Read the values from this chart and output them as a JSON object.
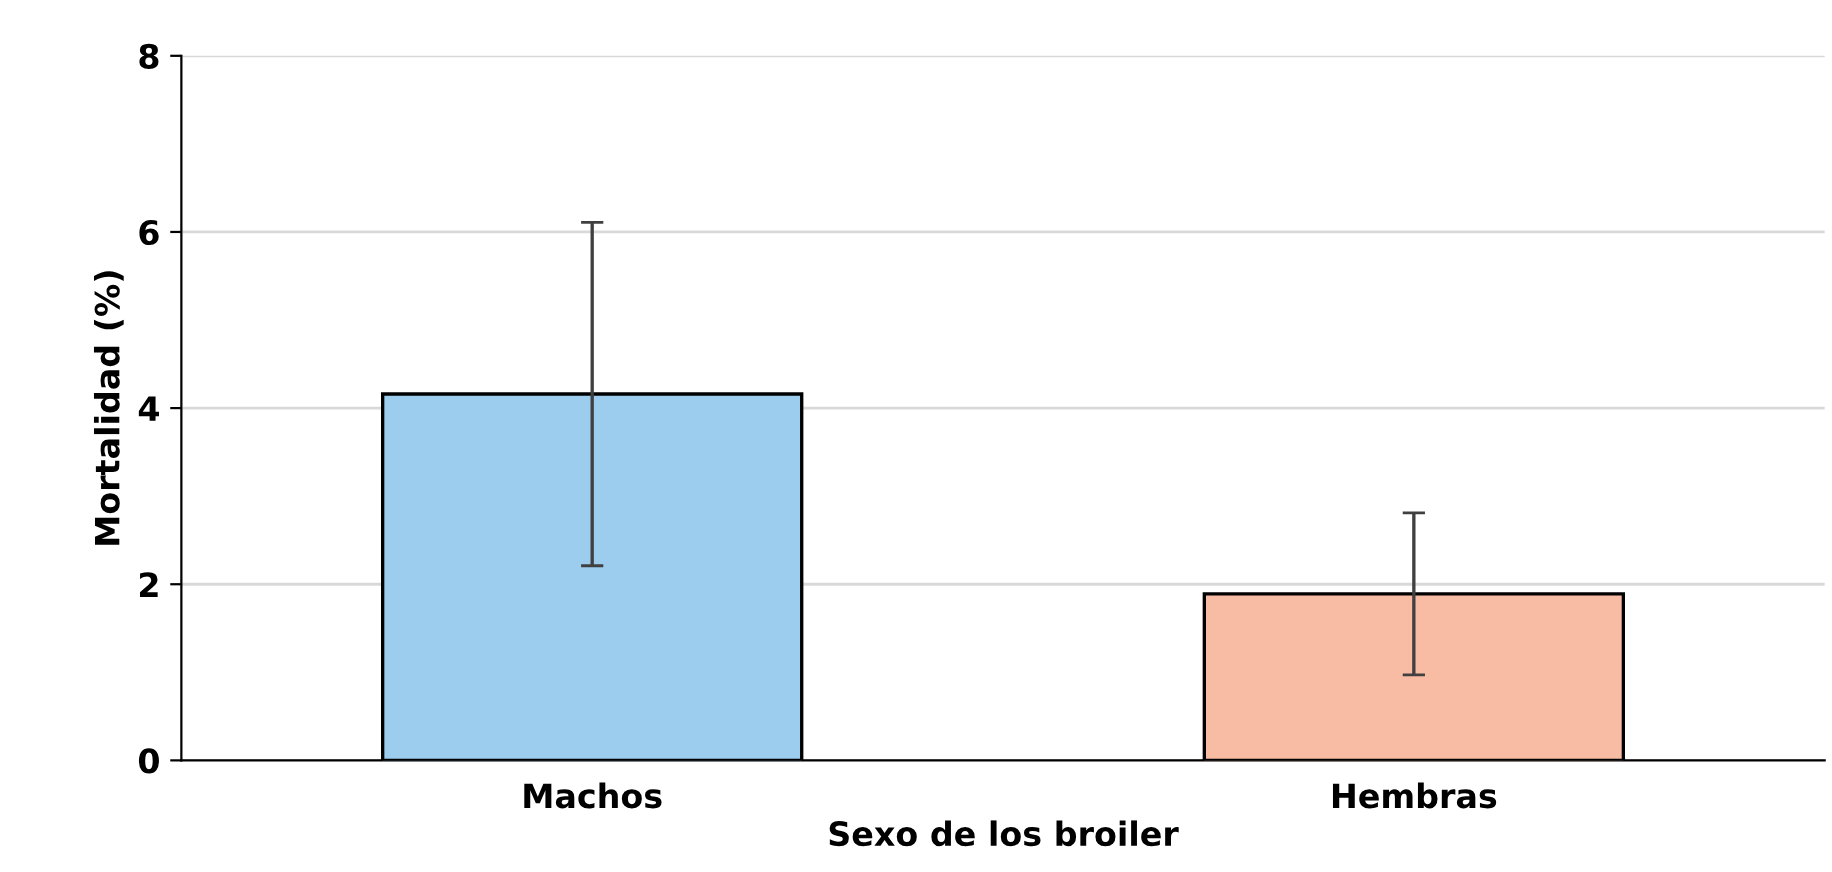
{
  "chart_data": {
    "type": "bar",
    "xlabel": "Sexo de los broiler",
    "ylabel": "Mortalidad (%)",
    "categories": [
      "Machos",
      "Hembras"
    ],
    "values": [
      4.16,
      1.89
    ],
    "colors": [
      "#9dcdee",
      "#f8bca4"
    ],
    "errors": [
      1.95,
      0.92
    ],
    "ylim": [
      0,
      8
    ],
    "yticks": [
      0,
      2,
      4,
      6,
      8
    ],
    "grid": "y"
  }
}
